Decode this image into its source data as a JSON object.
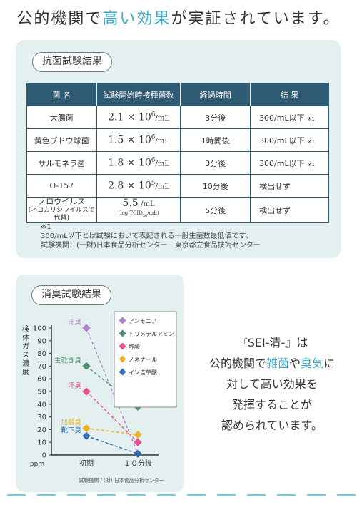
{
  "headline": {
    "part1": "公的機関で",
    "part2": "高い効果",
    "part3": "が実証されています。"
  },
  "antibacterial": {
    "title": "抗菌試験結果",
    "headers": [
      "菌 名",
      "試験開始時接種菌数",
      "経過時間",
      "結 果"
    ],
    "rows": [
      {
        "name": "大腸菌",
        "count_mantissa": "2.1 × 10",
        "count_exp": "6",
        "count_unit": "/mL",
        "time": "3分後",
        "result": "300/mL以下",
        "mark": "※1"
      },
      {
        "name": "黄色ブドウ球菌",
        "count_mantissa": "1.5 × 10",
        "count_exp": "6",
        "count_unit": "/mL",
        "time": "1時間後",
        "result": "300/mL以下",
        "mark": "※1"
      },
      {
        "name": "サルモネラ菌",
        "count_mantissa": "1.8 × 10",
        "count_exp": "6",
        "count_unit": "/mL",
        "time": "3分後",
        "result": "300/mL以下",
        "mark": "※1"
      },
      {
        "name": "O-157",
        "count_mantissa": "2.8 × 10",
        "count_exp": "5",
        "count_unit": "/mL",
        "time": "10分後",
        "result": "検出せず",
        "mark": ""
      }
    ],
    "norovirus": {
      "name": "ノロウイルス",
      "name_sub": "(ネコカリシウイルスで代替)",
      "count_main": "5.5",
      "count_unit": "/mL",
      "count_sub_pre": "(log TCID",
      "count_sub_idx": "50",
      "count_sub_post": "/mL)",
      "time": "5分後",
      "result": "検出せず"
    },
    "notes": [
      "※1",
      "300/mL以下とは試験において表記される一般生菌数最低値です。",
      "試験機関：(一財)日本食品分析センター　東京都立食品技術センター"
    ]
  },
  "deodorization": {
    "title": "消臭試験結果",
    "chart_data": {
      "type": "line",
      "ylabel": "検体ガス濃度",
      "yunit": "ppm",
      "ylim": [
        0,
        100
      ],
      "yticks": [
        0,
        10,
        20,
        30,
        40,
        50,
        60,
        70,
        80,
        90,
        100
      ],
      "categories": [
        "初期",
        "１０分後"
      ],
      "series": [
        {
          "name": "アンモニア",
          "label": "汗臭",
          "values": [
            100,
            1
          ],
          "color": "#b17fc7"
        },
        {
          "name": "トリメチルアミン",
          "label": "生乾き臭",
          "values": [
            70,
            38
          ],
          "color": "#4f8f6b"
        },
        {
          "name": "酢酸",
          "label": "汗臭",
          "values": [
            50,
            10
          ],
          "color": "#e94f8c"
        },
        {
          "name": "ノネナール",
          "label": "加齢臭",
          "values": [
            21,
            16
          ],
          "color": "#e9b41f"
        },
        {
          "name": "イソ吉草酸",
          "label": "靴下臭",
          "values": [
            15,
            1
          ],
          "color": "#2c6db5"
        }
      ],
      "source": "試験機関 / (財) 日本食品分析センター"
    }
  },
  "message": {
    "line1": "『SEI-清-』は",
    "line2_a": "公的機関で",
    "line2_b": "雑菌",
    "line2_c": "や",
    "line2_d": "臭気",
    "line2_e": "に",
    "line3": "対して高い効果を",
    "line4": "発揮することが",
    "line5": "認められています。"
  }
}
